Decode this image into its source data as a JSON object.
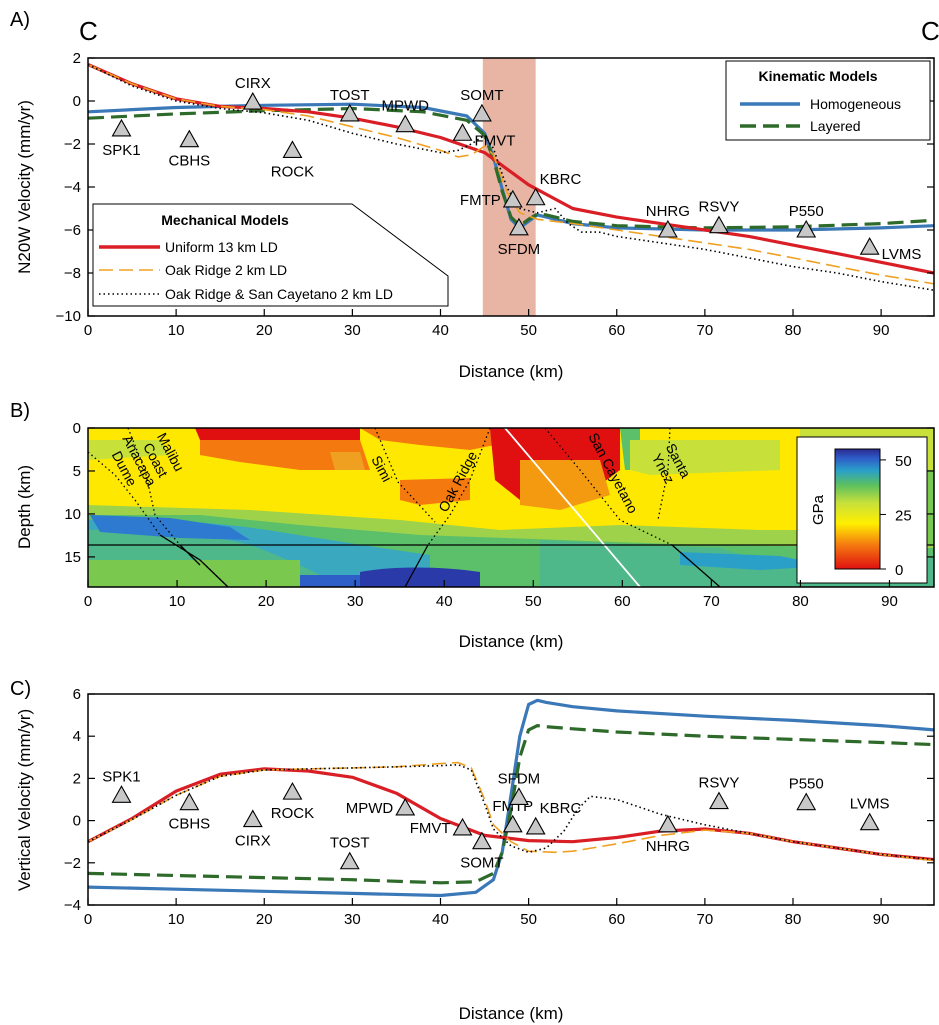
{
  "figure": {
    "section_start_label": "C",
    "section_end_label": "C'"
  },
  "chart_data": [
    {
      "panel": "A)",
      "type": "line",
      "xlabel": "Distance (km)",
      "ylabel": "N20W Velocity (mm/yr)",
      "xlim": [
        0,
        96
      ],
      "ylim": [
        -10,
        2
      ],
      "xticks": [
        0,
        10,
        20,
        30,
        40,
        50,
        60,
        70,
        80,
        90
      ],
      "yticks": [
        2,
        0,
        -2,
        -4,
        -6,
        -8,
        -10
      ],
      "grid": false,
      "shaded_band": {
        "x": [
          44.8,
          50.8
        ],
        "color": "#e8b4a4"
      },
      "legends": [
        {
          "title": "Kinematic Models",
          "position": "top-right",
          "entries": [
            "Homogeneous",
            "Layered"
          ]
        },
        {
          "title": "Mechanical Models",
          "position": "bottom-left",
          "entries": [
            "Uniform 13 km LD",
            "Oak Ridge  2 km LD",
            "Oak Ridge & San Cayetano 2 km LD"
          ]
        }
      ],
      "series": [
        {
          "name": "Homogeneous",
          "color": "#3a78b8",
          "style": "solid",
          "x": [
            0,
            10,
            20,
            30,
            38,
            43,
            45,
            46,
            47,
            48,
            49,
            50,
            51,
            52,
            55,
            60,
            70,
            80,
            90,
            96
          ],
          "y": [
            -0.5,
            -0.3,
            -0.2,
            -0.15,
            -0.3,
            -0.7,
            -1.5,
            -2.6,
            -4.1,
            -5.5,
            -5.9,
            -5.6,
            -5.3,
            -5.4,
            -5.7,
            -5.9,
            -6.0,
            -6.0,
            -5.9,
            -5.8
          ]
        },
        {
          "name": "Layered",
          "color": "#2e6b2a",
          "style": "dashed",
          "x": [
            0,
            10,
            20,
            30,
            38,
            43,
            45,
            46,
            47,
            48,
            49,
            50,
            51,
            52,
            55,
            60,
            70,
            80,
            90,
            96
          ],
          "y": [
            -0.8,
            -0.6,
            -0.45,
            -0.35,
            -0.5,
            -0.9,
            -1.6,
            -2.7,
            -4.2,
            -5.4,
            -5.8,
            -5.5,
            -5.25,
            -5.3,
            -5.6,
            -5.8,
            -5.9,
            -5.85,
            -5.7,
            -5.55
          ]
        },
        {
          "name": "Uniform 13 km LD",
          "color": "#d91e26",
          "style": "solid",
          "x": [
            0,
            5,
            10,
            15,
            20,
            25,
            30,
            35,
            40,
            45,
            50,
            55,
            60,
            65,
            70,
            75,
            80,
            85,
            90,
            96
          ],
          "y": [
            1.7,
            0.8,
            0.1,
            -0.25,
            -0.35,
            -0.5,
            -0.8,
            -1.2,
            -1.7,
            -2.4,
            -3.9,
            -5.0,
            -5.4,
            -5.7,
            -6.0,
            -6.3,
            -6.7,
            -7.1,
            -7.5,
            -8.0
          ]
        },
        {
          "name": "Oak Ridge  2 km LD",
          "color": "#f0a020",
          "style": "longdash",
          "x": [
            0,
            5,
            10,
            15,
            20,
            25,
            30,
            35,
            40,
            42,
            43.5,
            45,
            46,
            47.5,
            49,
            51,
            55,
            60,
            65,
            70,
            75,
            80,
            85,
            90,
            96
          ],
          "y": [
            1.7,
            0.8,
            0.1,
            -0.25,
            -0.4,
            -0.7,
            -1.2,
            -1.7,
            -2.3,
            -2.6,
            -2.5,
            -2.1,
            -2.5,
            -4.2,
            -5.2,
            -5.5,
            -5.7,
            -6.0,
            -6.3,
            -6.6,
            -6.9,
            -7.3,
            -7.7,
            -8.1,
            -8.5
          ]
        },
        {
          "name": "Oak Ridge & San Cayetano 2 km LD",
          "color": "#000000",
          "style": "dotted",
          "x": [
            0,
            5,
            10,
            15,
            20,
            25,
            30,
            35,
            40,
            42,
            43.5,
            45,
            46,
            47.5,
            49,
            51,
            53,
            54.5,
            56,
            58,
            60,
            65,
            70,
            75,
            80,
            85,
            90,
            96
          ],
          "y": [
            1.7,
            0.7,
            0.0,
            -0.35,
            -0.55,
            -0.9,
            -1.5,
            -2.0,
            -2.4,
            -2.3,
            -2.0,
            -1.6,
            -2.2,
            -4.0,
            -5.0,
            -5.2,
            -5.0,
            -5.7,
            -6.1,
            -6.1,
            -6.3,
            -6.6,
            -6.9,
            -7.3,
            -7.7,
            -8.0,
            -8.4,
            -8.8
          ]
        }
      ],
      "stations": [
        {
          "name": "SPK1",
          "x": 3.8,
          "y": -1.3,
          "label_pos": "below"
        },
        {
          "name": "CBHS",
          "x": 11.5,
          "y": -1.8,
          "label_pos": "below"
        },
        {
          "name": "CIRX",
          "x": 18.7,
          "y": -0.05,
          "label_pos": "above"
        },
        {
          "name": "ROCK",
          "x": 23.2,
          "y": -2.3,
          "label_pos": "below"
        },
        {
          "name": "TOST",
          "x": 29.7,
          "y": -0.6,
          "label_pos": "above"
        },
        {
          "name": "MPWD",
          "x": 36.0,
          "y": -1.1,
          "label_pos": "above"
        },
        {
          "name": "FMVT",
          "x": 42.5,
          "y": -1.5,
          "label_pos": "right"
        },
        {
          "name": "SOMT",
          "x": 44.7,
          "y": -0.6,
          "label_pos": "above"
        },
        {
          "name": "FMTP",
          "x": 48.2,
          "y": -4.6,
          "label_pos": "left"
        },
        {
          "name": "SFDM",
          "x": 48.9,
          "y": -5.9,
          "label_pos": "below"
        },
        {
          "name": "KBRC",
          "x": 50.8,
          "y": -4.5,
          "label_pos": "above-right"
        },
        {
          "name": "NHRG",
          "x": 65.8,
          "y": -6.0,
          "label_pos": "above"
        },
        {
          "name": "RSVY",
          "x": 71.6,
          "y": -5.8,
          "label_pos": "above"
        },
        {
          "name": "P550",
          "x": 81.5,
          "y": -6.0,
          "label_pos": "above"
        },
        {
          "name": "LVMS",
          "x": 88.7,
          "y": -6.8,
          "label_pos": "right"
        }
      ]
    },
    {
      "panel": "B)",
      "type": "heatmap",
      "xlabel": "Distance (km)",
      "ylabel": "Depth (km)",
      "xlim": [
        0,
        95
      ],
      "ylim": [
        0,
        18.5
      ],
      "xticks": [
        0,
        10,
        20,
        30,
        40,
        50,
        60,
        70,
        80,
        90
      ],
      "yticks": [
        0,
        5,
        10,
        15
      ],
      "colorbar": {
        "label": "GPa",
        "range": [
          0,
          55
        ],
        "ticks": [
          0,
          25,
          50
        ]
      },
      "horizontal_line_depth": 13,
      "faults": [
        {
          "name": "Anacapa Dume",
          "label_x": 4.5,
          "label_depth": 4.5
        },
        {
          "name": "Malibu Coast",
          "label_x": 8.0,
          "label_depth": 3.5
        },
        {
          "name": "Simi",
          "label_x": 32.5,
          "label_depth": 5.0
        },
        {
          "name": "Oak Ridge",
          "label_x": 42.0,
          "label_depth": 6.5
        },
        {
          "name": "San Cayetano",
          "label_x": 58.5,
          "label_depth": 5.5
        },
        {
          "name": "Santa Ynez",
          "label_x": 65.0,
          "label_depth": 4.5
        }
      ]
    },
    {
      "panel": "C)",
      "type": "line",
      "xlabel": "Distance (km)",
      "ylabel": "Vertical Velocity (mm/yr)",
      "xlim": [
        0,
        96
      ],
      "ylim": [
        -4,
        6
      ],
      "xticks": [
        0,
        10,
        20,
        30,
        40,
        50,
        60,
        70,
        80,
        90
      ],
      "yticks": [
        6,
        4,
        2,
        0,
        -2,
        -4
      ],
      "grid": false,
      "series": [
        {
          "name": "Homogeneous",
          "color": "#3a78b8",
          "style": "solid",
          "x": [
            0,
            10,
            20,
            30,
            40,
            44,
            46,
            47,
            48,
            49,
            50,
            51,
            52,
            55,
            60,
            70,
            80,
            90,
            96
          ],
          "y": [
            -3.15,
            -3.25,
            -3.35,
            -3.45,
            -3.55,
            -3.4,
            -2.8,
            -1.5,
            1.2,
            4.0,
            5.5,
            5.7,
            5.6,
            5.4,
            5.2,
            4.95,
            4.75,
            4.5,
            4.3
          ]
        },
        {
          "name": "Layered",
          "color": "#2e6b2a",
          "style": "dashed",
          "x": [
            0,
            10,
            20,
            30,
            40,
            44,
            46,
            47,
            48,
            49,
            50,
            51,
            52,
            55,
            60,
            70,
            80,
            90,
            96
          ],
          "y": [
            -2.5,
            -2.6,
            -2.7,
            -2.8,
            -2.95,
            -2.9,
            -2.5,
            -1.5,
            0.5,
            3.0,
            4.3,
            4.5,
            4.45,
            4.35,
            4.2,
            4.0,
            3.85,
            3.7,
            3.6
          ]
        },
        {
          "name": "Uniform 13 km LD",
          "color": "#d91e26",
          "style": "solid",
          "x": [
            0,
            5,
            10,
            15,
            20,
            25,
            30,
            35,
            40,
            45,
            50,
            55,
            60,
            65,
            70,
            75,
            80,
            85,
            90,
            96
          ],
          "y": [
            -1.0,
            0.1,
            1.4,
            2.2,
            2.45,
            2.35,
            2.05,
            1.3,
            0.1,
            -0.7,
            -0.95,
            -1.0,
            -0.8,
            -0.5,
            -0.4,
            -0.6,
            -1.0,
            -1.3,
            -1.6,
            -1.85
          ]
        },
        {
          "name": "Oak Ridge  2 km LD",
          "color": "#f0a020",
          "style": "longdash",
          "x": [
            0,
            5,
            10,
            15,
            20,
            25,
            30,
            35,
            40,
            42,
            43.5,
            45,
            46,
            48,
            50,
            53,
            55,
            60,
            65,
            70,
            75,
            80,
            85,
            90,
            96
          ],
          "y": [
            -1.0,
            0.05,
            1.2,
            2.1,
            2.4,
            2.45,
            2.5,
            2.55,
            2.7,
            2.75,
            2.5,
            1.0,
            -0.2,
            -1.0,
            -1.45,
            -1.5,
            -1.45,
            -1.1,
            -0.7,
            -0.45,
            -0.6,
            -1.0,
            -1.3,
            -1.6,
            -1.9
          ]
        },
        {
          "name": "Oak Ridge & San Cayetano 2 km LD",
          "color": "#000000",
          "style": "dotted",
          "x": [
            0,
            5,
            10,
            15,
            20,
            25,
            30,
            35,
            40,
            42,
            43.5,
            45,
            46,
            48,
            50,
            52,
            54,
            55.5,
            57,
            60,
            65,
            70,
            75,
            80,
            85,
            90,
            96
          ],
          "y": [
            -1.0,
            0.05,
            1.2,
            2.1,
            2.4,
            2.45,
            2.5,
            2.55,
            2.6,
            2.65,
            2.4,
            0.8,
            -0.4,
            -1.2,
            -1.5,
            -1.3,
            -0.5,
            0.5,
            1.15,
            1.0,
            0.3,
            -0.2,
            -0.6,
            -1.0,
            -1.3,
            -1.6,
            -1.85
          ]
        }
      ],
      "stations": [
        {
          "name": "SPK1",
          "x": 3.8,
          "y": 1.2,
          "label_pos": "above"
        },
        {
          "name": "CBHS",
          "x": 11.5,
          "y": 0.85,
          "label_pos": "below"
        },
        {
          "name": "CIRX",
          "x": 18.7,
          "y": 0.05,
          "label_pos": "below"
        },
        {
          "name": "ROCK",
          "x": 23.2,
          "y": 1.35,
          "label_pos": "below"
        },
        {
          "name": "TOST",
          "x": 29.7,
          "y": -1.95,
          "label_pos": "above"
        },
        {
          "name": "MPWD",
          "x": 36.0,
          "y": 0.6,
          "label_pos": "left"
        },
        {
          "name": "FMVT",
          "x": 42.5,
          "y": -0.35,
          "label_pos": "left"
        },
        {
          "name": "SOMT",
          "x": 44.7,
          "y": -1.0,
          "label_pos": "below"
        },
        {
          "name": "FMTP",
          "x": 48.2,
          "y": -0.2,
          "label_pos": "above"
        },
        {
          "name": "SFDM",
          "x": 48.9,
          "y": 1.1,
          "label_pos": "above"
        },
        {
          "name": "KBRC",
          "x": 50.8,
          "y": -0.3,
          "label_pos": "above-right"
        },
        {
          "name": "NHRG",
          "x": 65.8,
          "y": -0.2,
          "label_pos": "below"
        },
        {
          "name": "RSVY",
          "x": 71.6,
          "y": 0.9,
          "label_pos": "above"
        },
        {
          "name": "P550",
          "x": 81.5,
          "y": 0.85,
          "label_pos": "above"
        },
        {
          "name": "LVMS",
          "x": 88.7,
          "y": -0.1,
          "label_pos": "above"
        }
      ]
    }
  ]
}
